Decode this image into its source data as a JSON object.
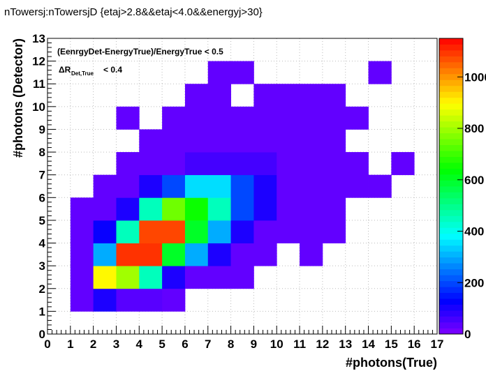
{
  "chart_data": {
    "type": "heatmap",
    "title": "nTowersj:nTowersjD {etaj>2.8&&etaj<4.0&&energyj>30}",
    "xlabel": "#photons(True)",
    "ylabel": "#photons (Detector)",
    "xlim": [
      0,
      17
    ],
    "ylim": [
      0,
      13
    ],
    "x_ticks": [
      "0",
      "1",
      "2",
      "3",
      "4",
      "5",
      "6",
      "7",
      "8",
      "9",
      "10",
      "11",
      "12",
      "13",
      "14",
      "15",
      "16",
      "17"
    ],
    "y_ticks": [
      "0",
      "1",
      "2",
      "3",
      "4",
      "5",
      "6",
      "7",
      "8",
      "9",
      "10",
      "11",
      "12",
      "13"
    ],
    "z_range": [
      0,
      1150
    ],
    "palette_ticks": [
      "0",
      "200",
      "400",
      "600",
      "800",
      "1000"
    ],
    "palette_values": [
      0,
      200,
      400,
      600,
      800,
      1000
    ],
    "grid": true,
    "annotations": {
      "line1": "(EenrgyDet-EnergyTrue)/EnergyTrue < 0.5",
      "line2_prefix": "ΔR",
      "line2_sub": "Det,True",
      "line2_suffix": "< 0.4"
    },
    "cells": [
      [
        1,
        1,
        30
      ],
      [
        2,
        1,
        100
      ],
      [
        3,
        1,
        40
      ],
      [
        4,
        1,
        40
      ],
      [
        5,
        1,
        30
      ],
      [
        1,
        2,
        30
      ],
      [
        2,
        2,
        900
      ],
      [
        3,
        2,
        800
      ],
      [
        4,
        2,
        450
      ],
      [
        5,
        2,
        100
      ],
      [
        6,
        2,
        30
      ],
      [
        7,
        2,
        30
      ],
      [
        8,
        2,
        30
      ],
      [
        1,
        3,
        30
      ],
      [
        2,
        3,
        300
      ],
      [
        3,
        3,
        1100
      ],
      [
        4,
        3,
        1100
      ],
      [
        5,
        3,
        600
      ],
      [
        6,
        3,
        300
      ],
      [
        7,
        3,
        100
      ],
      [
        8,
        3,
        30
      ],
      [
        9,
        3,
        30
      ],
      [
        11,
        3,
        30
      ],
      [
        1,
        4,
        30
      ],
      [
        2,
        4,
        120
      ],
      [
        3,
        4,
        450
      ],
      [
        4,
        4,
        1080
      ],
      [
        5,
        4,
        1080
      ],
      [
        6,
        4,
        600
      ],
      [
        7,
        4,
        300
      ],
      [
        8,
        4,
        100
      ],
      [
        9,
        4,
        30
      ],
      [
        10,
        4,
        30
      ],
      [
        11,
        4,
        30
      ],
      [
        12,
        4,
        30
      ],
      [
        1,
        5,
        30
      ],
      [
        2,
        5,
        30
      ],
      [
        3,
        5,
        100
      ],
      [
        4,
        5,
        450
      ],
      [
        5,
        5,
        750
      ],
      [
        6,
        5,
        650
      ],
      [
        7,
        5,
        450
      ],
      [
        8,
        5,
        200
      ],
      [
        9,
        5,
        100
      ],
      [
        10,
        5,
        30
      ],
      [
        11,
        5,
        30
      ],
      [
        12,
        5,
        30
      ],
      [
        2,
        6,
        30
      ],
      [
        3,
        6,
        30
      ],
      [
        4,
        6,
        100
      ],
      [
        5,
        6,
        200
      ],
      [
        6,
        6,
        350
      ],
      [
        7,
        6,
        350
      ],
      [
        8,
        6,
        200
      ],
      [
        9,
        6,
        100
      ],
      [
        10,
        6,
        30
      ],
      [
        11,
        6,
        30
      ],
      [
        12,
        6,
        30
      ],
      [
        13,
        6,
        30
      ],
      [
        14,
        6,
        30
      ],
      [
        3,
        7,
        30
      ],
      [
        4,
        7,
        30
      ],
      [
        5,
        7,
        30
      ],
      [
        6,
        7,
        60
      ],
      [
        7,
        7,
        60
      ],
      [
        8,
        7,
        60
      ],
      [
        9,
        7,
        60
      ],
      [
        10,
        7,
        30
      ],
      [
        11,
        7,
        30
      ],
      [
        12,
        7,
        30
      ],
      [
        13,
        7,
        30
      ],
      [
        15,
        7,
        30
      ],
      [
        4,
        8,
        30
      ],
      [
        5,
        8,
        30
      ],
      [
        6,
        8,
        30
      ],
      [
        7,
        8,
        30
      ],
      [
        8,
        8,
        30
      ],
      [
        9,
        8,
        30
      ],
      [
        10,
        8,
        30
      ],
      [
        11,
        8,
        30
      ],
      [
        12,
        8,
        30
      ],
      [
        3,
        9,
        30
      ],
      [
        5,
        9,
        30
      ],
      [
        6,
        9,
        30
      ],
      [
        7,
        9,
        30
      ],
      [
        8,
        9,
        30
      ],
      [
        9,
        9,
        30
      ],
      [
        10,
        9,
        30
      ],
      [
        11,
        9,
        30
      ],
      [
        12,
        9,
        30
      ],
      [
        13,
        9,
        30
      ],
      [
        6,
        10,
        30
      ],
      [
        7,
        10,
        30
      ],
      [
        9,
        10,
        30
      ],
      [
        10,
        10,
        30
      ],
      [
        11,
        10,
        30
      ],
      [
        12,
        10,
        30
      ],
      [
        7,
        11,
        30
      ],
      [
        8,
        11,
        30
      ],
      [
        14,
        11,
        30
      ]
    ]
  }
}
